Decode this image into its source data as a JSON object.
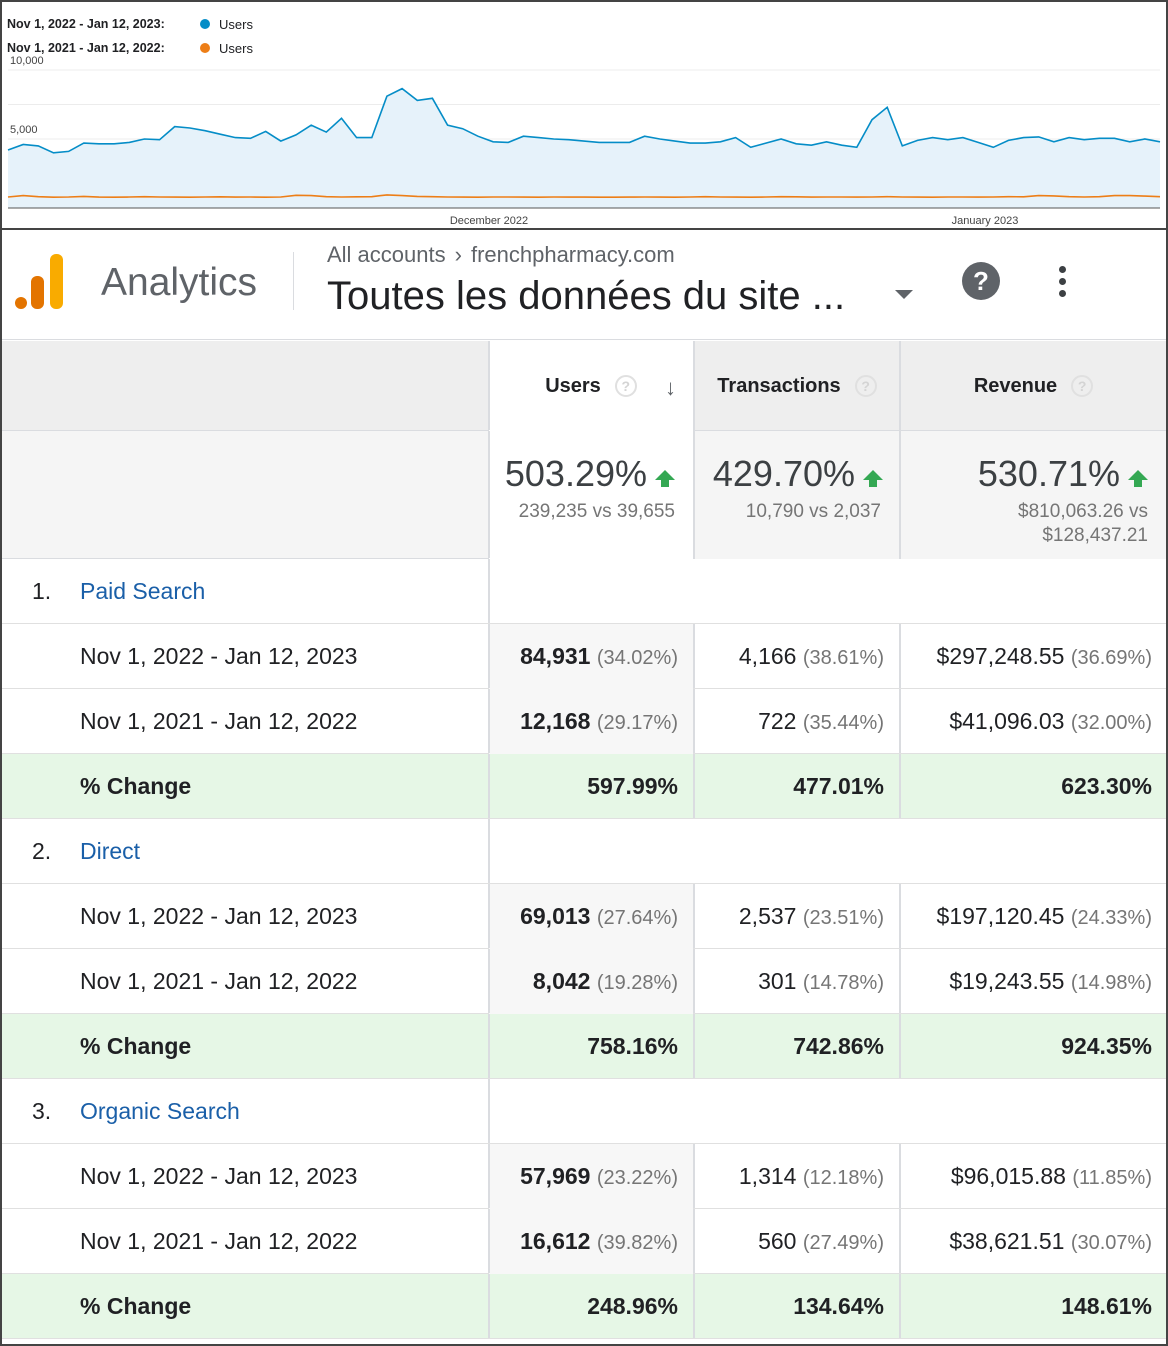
{
  "chart": {
    "legend": [
      {
        "range": "Nov 1, 2022 - Jan 12, 2023:",
        "series": "Users",
        "color": "#058dc7"
      },
      {
        "range": "Nov 1, 2021 - Jan 12, 2022:",
        "series": "Users",
        "color": "#ed7e17"
      }
    ],
    "y_ticks": [
      "10,000",
      "5,000"
    ],
    "x_ticks": [
      "December 2022",
      "January 2023"
    ]
  },
  "chart_data": {
    "type": "area",
    "ylim": [
      0,
      10000
    ],
    "yticks": [
      5000,
      10000
    ],
    "x_start": "Nov 1",
    "x_end": "Jan 12",
    "series": [
      {
        "name": "Users",
        "period": "Nov 1, 2022 - Jan 12, 2023",
        "color": "#058dc7",
        "values": [
          4200,
          4600,
          4500,
          4000,
          4100,
          4700,
          4650,
          4650,
          4750,
          5000,
          4950,
          5900,
          5800,
          5600,
          5350,
          5100,
          5050,
          5550,
          4850,
          5300,
          6000,
          5500,
          6500,
          5100,
          5100,
          8100,
          8650,
          7800,
          7950,
          6000,
          5750,
          5200,
          4800,
          4750,
          5200,
          5100,
          5000,
          4950,
          4850,
          4750,
          4750,
          4750,
          5200,
          5000,
          4850,
          4700,
          4700,
          4800,
          5100,
          4400,
          4700,
          5000,
          4650,
          4550,
          4800,
          4550,
          4400,
          6400,
          7300,
          4500,
          4900,
          5100,
          4950,
          5100,
          4750,
          4400,
          4900,
          5100,
          5150,
          4800,
          5100,
          4950,
          5050,
          5050,
          4800,
          5000,
          4800
        ]
      },
      {
        "name": "Users",
        "period": "Nov 1, 2021 - Jan 12, 2022",
        "color": "#ed7e17",
        "values": [
          800,
          900,
          820,
          780,
          800,
          840,
          790,
          780,
          800,
          820,
          800,
          790,
          780,
          800,
          810,
          790,
          800,
          780,
          800,
          920,
          900,
          820,
          800,
          810,
          820,
          950,
          900,
          840,
          820,
          800,
          790,
          780,
          800,
          800,
          790,
          780,
          800,
          790,
          790,
          780,
          780,
          790,
          800,
          790,
          780,
          800,
          820,
          800,
          790,
          780,
          800,
          820,
          810,
          790,
          800,
          800,
          790,
          800,
          820,
          800,
          790,
          780,
          800,
          800,
          790,
          800,
          820,
          810,
          900,
          880,
          820,
          800,
          820,
          900,
          900,
          860,
          820
        ]
      }
    ]
  },
  "header": {
    "brand": "Analytics",
    "breadcrumb_root": "All accounts",
    "breadcrumb_sep": "›",
    "breadcrumb_account": "frenchpharmacy.com",
    "property": "Toutes les données du site ...",
    "help_icon": "?",
    "colors": {
      "logo_orange": "#f9ab00",
      "logo_dark": "#e37400"
    }
  },
  "table": {
    "columns": [
      "Users",
      "Transactions",
      "Revenue"
    ],
    "help_glyph": "?",
    "sort_glyph": "↓",
    "summary": [
      {
        "pct": "503.29%",
        "sub1": "239,235 vs 39,655",
        "sub2": ""
      },
      {
        "pct": "429.70%",
        "sub1": "10,790 vs 2,037",
        "sub2": ""
      },
      {
        "pct": "530.71%",
        "sub1": "$810,063.26 vs",
        "sub2": "$128,437.21"
      }
    ],
    "groups": [
      {
        "num": "1.",
        "name": "Paid Search",
        "rows": [
          {
            "label": "Nov 1, 2022 - Jan 12, 2023",
            "users": "84,931",
            "users_pct": "(34.02%)",
            "tx": "4,166",
            "tx_pct": "(38.61%)",
            "rev": "$297,248.55",
            "rev_pct": "(36.69%)"
          },
          {
            "label": "Nov 1, 2021 - Jan 12, 2022",
            "users": "12,168",
            "users_pct": "(29.17%)",
            "tx": "722",
            "tx_pct": "(35.44%)",
            "rev": "$41,096.03",
            "rev_pct": "(32.00%)"
          }
        ],
        "change": {
          "label": "% Change",
          "users": "597.99%",
          "tx": "477.01%",
          "rev": "623.30%"
        }
      },
      {
        "num": "2.",
        "name": "Direct",
        "rows": [
          {
            "label": "Nov 1, 2022 - Jan 12, 2023",
            "users": "69,013",
            "users_pct": "(27.64%)",
            "tx": "2,537",
            "tx_pct": "(23.51%)",
            "rev": "$197,120.45",
            "rev_pct": "(24.33%)"
          },
          {
            "label": "Nov 1, 2021 - Jan 12, 2022",
            "users": "8,042",
            "users_pct": "(19.28%)",
            "tx": "301",
            "tx_pct": "(14.78%)",
            "rev": "$19,243.55",
            "rev_pct": "(14.98%)"
          }
        ],
        "change": {
          "label": "% Change",
          "users": "758.16%",
          "tx": "742.86%",
          "rev": "924.35%"
        }
      },
      {
        "num": "3.",
        "name": "Organic Search",
        "rows": [
          {
            "label": "Nov 1, 2022 - Jan 12, 2023",
            "users": "57,969",
            "users_pct": "(23.22%)",
            "tx": "1,314",
            "tx_pct": "(12.18%)",
            "rev": "$96,015.88",
            "rev_pct": "(11.85%)"
          },
          {
            "label": "Nov 1, 2021 - Jan 12, 2022",
            "users": "16,612",
            "users_pct": "(39.82%)",
            "tx": "560",
            "tx_pct": "(27.49%)",
            "rev": "$38,621.51",
            "rev_pct": "(30.07%)"
          }
        ],
        "change": {
          "label": "% Change",
          "users": "248.96%",
          "tx": "134.64%",
          "rev": "148.61%"
        }
      }
    ]
  }
}
